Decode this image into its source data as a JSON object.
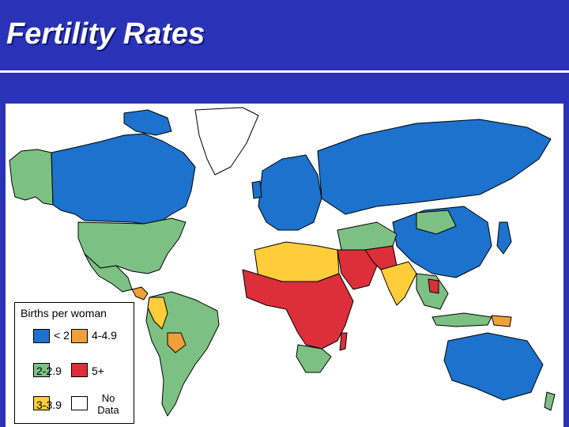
{
  "title": "Fertility Rates",
  "colors": {
    "background": "#2a33b8",
    "under_2": "#1c72cc",
    "2_to_2_9": "#7cc183",
    "3_to_3_9": "#ffcd3a",
    "4_to_4_9": "#f0a03a",
    "5_plus": "#dc2f3a",
    "no_data": "#ffffff"
  },
  "legend": {
    "title": "Births per woman",
    "items": [
      {
        "label": "< 2",
        "color": "#1c72cc"
      },
      {
        "label": "4-4.9",
        "color": "#f0a03a"
      },
      {
        "label": "2-2.9",
        "color": "#7cc183"
      },
      {
        "label": "5+",
        "color": "#dc2f3a"
      },
      {
        "label": "3-3.9",
        "color": "#ffcd3a"
      },
      {
        "label": "No",
        "label2": "Data",
        "color": "#ffffff"
      }
    ]
  },
  "regions": [
    {
      "name": "North America (Canada)",
      "category": "< 2"
    },
    {
      "name": "Alaska",
      "category": "2-2.9"
    },
    {
      "name": "Greenland",
      "category": "No Data"
    },
    {
      "name": "United States",
      "category": "2-2.9"
    },
    {
      "name": "Mexico",
      "category": "2-2.9"
    },
    {
      "name": "South America",
      "category": "2-2.9"
    },
    {
      "name": "Bolivia",
      "category": "4-4.9"
    },
    {
      "name": "Europe",
      "category": "< 2"
    },
    {
      "name": "Russia",
      "category": "< 2"
    },
    {
      "name": "China",
      "category": "< 2"
    },
    {
      "name": "Mongolia",
      "category": "2-2.9"
    },
    {
      "name": "North Africa",
      "category": "3-3.9"
    },
    {
      "name": "Sub-Saharan Africa",
      "category": "5+"
    },
    {
      "name": "Southern Africa",
      "category": "2-2.9"
    },
    {
      "name": "Arabian Peninsula",
      "category": "5+"
    },
    {
      "name": "India",
      "category": "3-3.9"
    },
    {
      "name": "Southeast Asia",
      "category": "2-2.9"
    },
    {
      "name": "Australia",
      "category": "< 2"
    },
    {
      "name": "Madagascar",
      "category": "5+"
    }
  ]
}
